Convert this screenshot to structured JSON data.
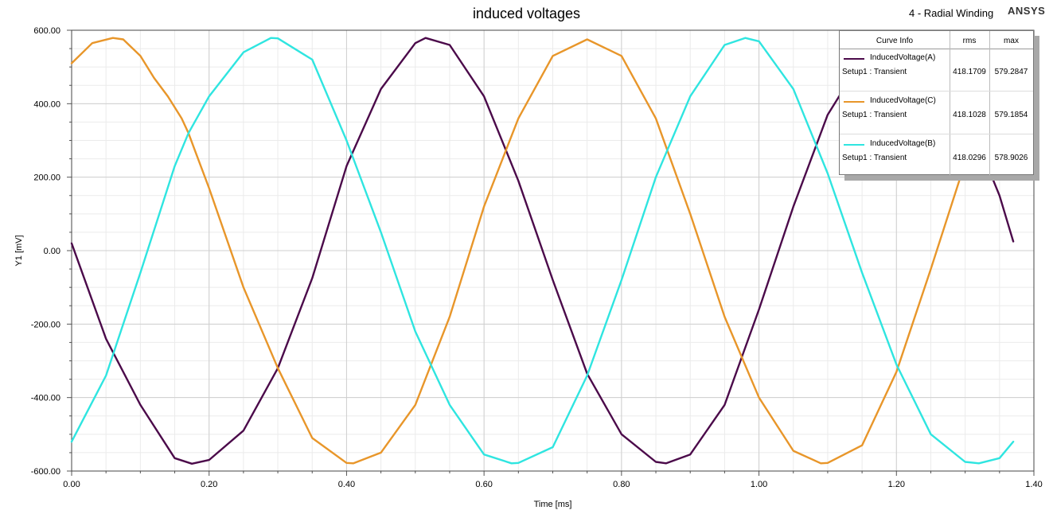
{
  "header": {
    "title": "induced voltages",
    "design": "4 - Radial Winding",
    "brand": "ANSYS"
  },
  "legend": {
    "col_curve": "Curve Info",
    "col_rms": "rms",
    "col_max": "max",
    "rows": [
      {
        "name": "InducedVoltage(A)",
        "setup": "Setup1 : Transient",
        "rms": "418.1709",
        "max": "579.2847",
        "color": "#4b0a4a"
      },
      {
        "name": "InducedVoltage(C)",
        "setup": "Setup1 : Transient",
        "rms": "418.1028",
        "max": "579.1854",
        "color": "#e8962a"
      },
      {
        "name": "InducedVoltage(B)",
        "setup": "Setup1 : Transient",
        "rms": "418.0296",
        "max": "578.9026",
        "color": "#2fe5e0"
      }
    ]
  },
  "chart_data": {
    "type": "line",
    "title": "induced voltages",
    "xlabel": "Time [ms]",
    "ylabel": "Y1 [mV]",
    "xlim": [
      0,
      1.4
    ],
    "ylim": [
      -600,
      600
    ],
    "grid": true,
    "legend_position": "top-right",
    "x_ticks": [
      "0.00",
      "0.20",
      "0.40",
      "0.60",
      "0.80",
      "1.00",
      "1.20",
      "1.40"
    ],
    "y_ticks": [
      "600.00",
      "400.00",
      "200.00",
      "0.00",
      "-200.00",
      "-400.00",
      "-600.00"
    ],
    "series": [
      {
        "name": "InducedVoltage(A)",
        "color": "#4b0a4a",
        "x": [
          0.0,
          0.05,
          0.1,
          0.15,
          0.175,
          0.2,
          0.25,
          0.3,
          0.35,
          0.4,
          0.45,
          0.5,
          0.515,
          0.55,
          0.6,
          0.65,
          0.7,
          0.75,
          0.8,
          0.85,
          0.865,
          0.9,
          0.95,
          1.0,
          1.05,
          1.1,
          1.15,
          1.2,
          1.21,
          1.25,
          1.3,
          1.35,
          1.37
        ],
        "y": [
          20,
          -240,
          -420,
          -565,
          -580,
          -570,
          -490,
          -320,
          -75,
          230,
          440,
          565,
          579,
          560,
          420,
          190,
          -80,
          -335,
          -500,
          -575,
          -579,
          -555,
          -420,
          -160,
          120,
          370,
          520,
          575,
          579,
          550,
          380,
          150,
          25
        ]
      },
      {
        "name": "InducedVoltage(C)",
        "color": "#e8962a",
        "x": [
          0.0,
          0.03,
          0.06,
          0.075,
          0.1,
          0.12,
          0.14,
          0.16,
          0.17,
          0.18,
          0.2,
          0.25,
          0.3,
          0.35,
          0.4,
          0.41,
          0.45,
          0.5,
          0.55,
          0.6,
          0.65,
          0.7,
          0.75,
          0.8,
          0.85,
          0.9,
          0.95,
          1.0,
          1.05,
          1.09,
          1.1,
          1.15,
          1.2,
          1.25,
          1.3,
          1.35
        ],
        "y": [
          510,
          565,
          579,
          575,
          530,
          470,
          420,
          360,
          320,
          270,
          170,
          -100,
          -320,
          -510,
          -578,
          -579,
          -550,
          -420,
          -180,
          120,
          360,
          530,
          575,
          530,
          360,
          100,
          -180,
          -400,
          -545,
          -579,
          -578,
          -530,
          -330,
          -50,
          240,
          480
        ]
      },
      {
        "name": "InducedVoltage(B)",
        "color": "#2fe5e0",
        "x": [
          0.0,
          0.05,
          0.1,
          0.15,
          0.17,
          0.2,
          0.25,
          0.29,
          0.3,
          0.35,
          0.4,
          0.45,
          0.5,
          0.55,
          0.6,
          0.64,
          0.65,
          0.7,
          0.75,
          0.8,
          0.85,
          0.9,
          0.95,
          0.98,
          1.0,
          1.05,
          1.1,
          1.15,
          1.2,
          1.25,
          1.3,
          1.32,
          1.35,
          1.37
        ],
        "y": [
          -520,
          -340,
          -60,
          230,
          320,
          420,
          540,
          579,
          578,
          520,
          300,
          50,
          -220,
          -420,
          -555,
          -579,
          -578,
          -535,
          -340,
          -80,
          200,
          420,
          560,
          579,
          570,
          440,
          210,
          -60,
          -310,
          -500,
          -575,
          -579,
          -565,
          -520
        ]
      }
    ]
  }
}
